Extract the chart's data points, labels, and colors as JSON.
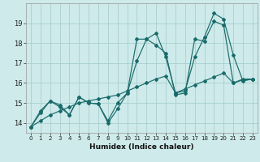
{
  "xlabel": "Humidex (Indice chaleur)",
  "bg_color": "#ceeaea",
  "grid_color": "#aacfcf",
  "line_color": "#1a6b6b",
  "x_values": [
    0,
    1,
    2,
    3,
    4,
    5,
    6,
    7,
    8,
    9,
    10,
    11,
    12,
    13,
    14,
    15,
    16,
    17,
    18,
    19,
    20,
    21,
    22,
    23
  ],
  "line_jagged": [
    13.8,
    14.6,
    15.1,
    14.8,
    14.4,
    15.3,
    15.0,
    14.95,
    14.0,
    14.7,
    15.5,
    18.2,
    18.2,
    17.9,
    17.5,
    15.4,
    15.5,
    18.2,
    18.1,
    19.1,
    18.9,
    16.0,
    16.2,
    16.2
  ],
  "line_mid": [
    13.8,
    14.5,
    15.1,
    14.9,
    14.4,
    15.3,
    15.0,
    14.95,
    14.1,
    15.0,
    15.5,
    17.1,
    18.2,
    18.5,
    17.3,
    15.5,
    15.6,
    17.3,
    18.3,
    19.5,
    19.2,
    17.4,
    16.1,
    16.2
  ],
  "line_trend": [
    13.8,
    14.1,
    14.4,
    14.6,
    14.8,
    15.0,
    15.1,
    15.2,
    15.3,
    15.4,
    15.6,
    15.8,
    16.0,
    16.2,
    16.35,
    15.5,
    15.7,
    15.9,
    16.1,
    16.3,
    16.5,
    16.0,
    16.15,
    16.2
  ],
  "ylim": [
    13.5,
    20.0
  ],
  "yticks": [
    14,
    15,
    16,
    17,
    18,
    19
  ],
  "xlim": [
    -0.5,
    23.5
  ],
  "xtick_fontsize": 5.0,
  "ytick_fontsize": 6.0,
  "xlabel_fontsize": 6.5
}
